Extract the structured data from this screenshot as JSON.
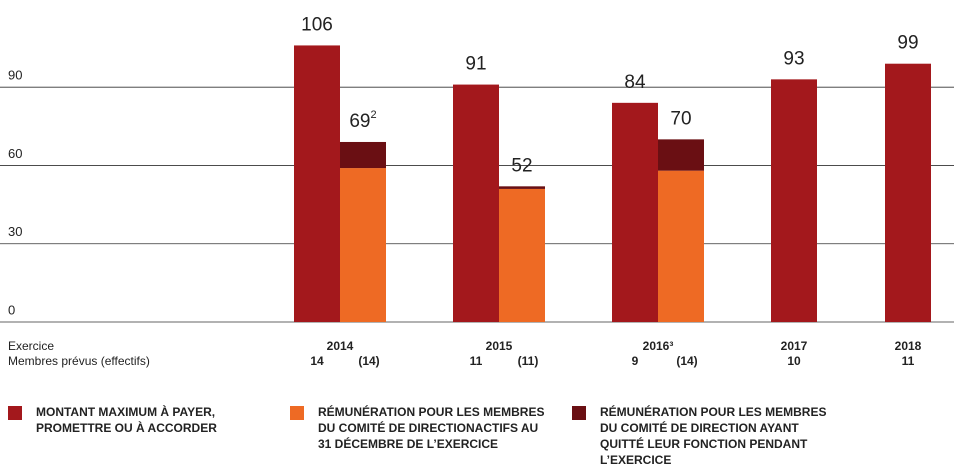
{
  "chart_data": {
    "type": "bar",
    "categories": [
      "2014",
      "2015",
      "2016³",
      "2017",
      "2018"
    ],
    "members_planned": [
      "14",
      "11",
      "9",
      "10",
      "11"
    ],
    "members_effective": [
      "(14)",
      "(11)",
      "(14)",
      null,
      null
    ],
    "row_labels": [
      "Exercice",
      "Membres prévus (effectifs)"
    ],
    "series": [
      {
        "name": "MONTANT MAXIMUM À PAYER, PROMETTRE OU À ACCORDER",
        "color": "#a3181c",
        "values": [
          106,
          91,
          84,
          93,
          99
        ]
      },
      {
        "name": "RÉMUNÉRATION POUR LES MEMBRES DU COMITÉ DE DIRECTIONACTIFS AU 31 DÉCEMBRE DE L’EXERCICE",
        "color": "#ee6a24",
        "values": [
          59,
          51,
          58,
          null,
          null
        ],
        "stack": "b"
      },
      {
        "name": "RÉMUNÉRATION POUR LES MEMBRES DU COMITÉ DE DIRECTION AYANT QUITTÉ LEUR FONCTION PENDANT L’EXERCICE",
        "color": "#6a0f13",
        "values": [
          10,
          1,
          12,
          null,
          null
        ],
        "stack": "b"
      }
    ],
    "totals": [
      69,
      52,
      70,
      null,
      null
    ],
    "total_footnotes": [
      "2",
      null,
      null,
      null,
      null
    ],
    "ylim": [
      0,
      110
    ],
    "yticks": [
      0,
      30,
      60,
      90
    ],
    "grid": true
  }
}
